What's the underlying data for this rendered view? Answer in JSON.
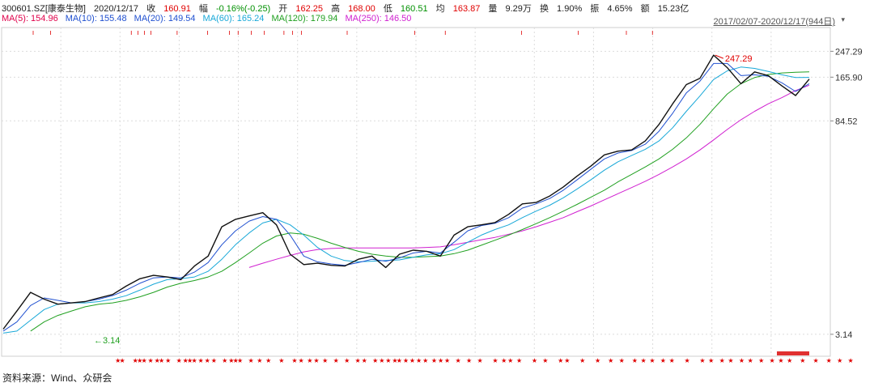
{
  "header": {
    "code": "300601.SZ[康泰生物]",
    "date": "2020/12/17",
    "close_label": "收",
    "close": "160.91",
    "change_label": "幅",
    "change": "-0.16%(-0.25)",
    "open_label": "开",
    "open": "162.25",
    "high_label": "高",
    "high": "168.00",
    "low_label": "低",
    "low": "160.51",
    "avg_label": "均",
    "avg": "163.87",
    "volume_label": "量",
    "volume": "9.29万",
    "turnover_label": "换",
    "turnover": "1.90%",
    "amplitude_label": "振",
    "amplitude": "4.65%",
    "amount_label": "额",
    "amount": "15.23亿",
    "date_range": "2017/02/07-2020/12/17(944日)"
  },
  "ma_legend": [
    {
      "label": "MA(5): 154.96",
      "color": "#e0004a"
    },
    {
      "label": "MA(10): 155.48",
      "color": "#2050d0"
    },
    {
      "label": "MA(20): 149.54",
      "color": "#2050d0"
    },
    {
      "label": "MA(60): 165.24",
      "color": "#18a8d8"
    },
    {
      "label": "MA(120): 179.94",
      "color": "#20a020"
    },
    {
      "label": "MA(250): 146.50",
      "color": "#d020d0"
    }
  ],
  "source": "资料来源：Wind、众研会",
  "chart_data": {
    "type": "line",
    "y_scale": "log",
    "y_ticks": [
      3.14,
      84.52,
      165.9,
      247.29
    ],
    "y_tick_labels": [
      "3.14",
      "84.52",
      "165.90",
      "247.29"
    ],
    "ylim": [
      2.6,
      285
    ],
    "x_range": [
      "2017/02/07",
      "2020/12/17"
    ],
    "annotations": [
      {
        "text": "247.29",
        "value": 247.29,
        "color": "#e00000"
      },
      {
        "text": "3.14",
        "value": 3.14,
        "color": "#20a020"
      }
    ],
    "series": [
      {
        "key": "price",
        "color": "#111111",
        "values": [
          3.4,
          4.5,
          6.0,
          5.4,
          5.0,
          5.1,
          5.2,
          5.5,
          5.8,
          6.6,
          7.4,
          7.8,
          7.6,
          7.3,
          9.0,
          10.5,
          16.5,
          18.5,
          19.5,
          20.5,
          17.0,
          10.8,
          9.2,
          9.4,
          9.1,
          9.0,
          10.0,
          10.5,
          8.8,
          10.8,
          11.5,
          11.3,
          10.5,
          14.5,
          16.5,
          17.0,
          17.6,
          20.0,
          23.5,
          24.0,
          26.5,
          30.5,
          36.0,
          42.0,
          50.0,
          53.0,
          54.0,
          62.0,
          80.0,
          110.0,
          148.0,
          163.0,
          233.0,
          192.0,
          150.0,
          180.0,
          170.0,
          145.0,
          125.0,
          161.0
        ]
      },
      {
        "key": "ma20",
        "color": "#2050d0",
        "values": [
          3.3,
          3.8,
          4.9,
          5.5,
          5.3,
          5.1,
          5.2,
          5.4,
          5.7,
          6.2,
          6.9,
          7.5,
          7.6,
          7.5,
          8.2,
          9.5,
          12.5,
          15.5,
          18.0,
          19.3,
          18.5,
          14.5,
          10.5,
          9.6,
          9.3,
          9.1,
          9.5,
          10.0,
          9.7,
          10.2,
          11.0,
          11.3,
          11.0,
          13.0,
          15.5,
          16.8,
          17.4,
          19.0,
          22.0,
          23.5,
          25.5,
          29.0,
          34.0,
          40.0,
          47.0,
          51.5,
          53.5,
          59.0,
          72.0,
          95.0,
          130.0,
          156.0,
          205.0,
          205.0,
          170.0,
          172.0,
          168.0,
          152.0,
          133.0,
          150.0
        ]
      },
      {
        "key": "ma60",
        "color": "#18a8d8",
        "values": [
          3.2,
          3.3,
          3.9,
          4.6,
          5.0,
          5.1,
          5.1,
          5.2,
          5.4,
          5.7,
          6.2,
          6.8,
          7.3,
          7.4,
          7.6,
          8.3,
          10.0,
          12.5,
          15.0,
          17.5,
          18.5,
          17.0,
          14.5,
          12.0,
          10.5,
          9.8,
          9.6,
          9.7,
          9.8,
          9.9,
          10.3,
          10.7,
          10.9,
          11.6,
          13.0,
          14.5,
          15.8,
          17.0,
          19.0,
          21.0,
          23.0,
          25.8,
          29.5,
          34.0,
          39.5,
          45.0,
          49.5,
          54.5,
          62.0,
          76.0,
          98.0,
          124.0,
          160.0,
          183.0,
          194.0,
          190.0,
          181.0,
          172.0,
          165.0,
          165.24
        ]
      },
      {
        "key": "ma120",
        "color": "#20a020",
        "values": [
          null,
          null,
          3.3,
          3.8,
          4.2,
          4.5,
          4.8,
          5.0,
          5.1,
          5.3,
          5.6,
          6.0,
          6.5,
          6.9,
          7.2,
          7.6,
          8.3,
          9.5,
          11.0,
          12.8,
          14.3,
          15.0,
          14.7,
          13.8,
          12.8,
          12.0,
          11.3,
          10.8,
          10.5,
          10.3,
          10.3,
          10.4,
          10.5,
          10.9,
          11.5,
          12.4,
          13.4,
          14.5,
          15.8,
          17.3,
          19.0,
          21.0,
          23.3,
          26.0,
          29.0,
          33.0,
          37.0,
          41.5,
          47.0,
          54.5,
          65.0,
          80.0,
          102.0,
          128.0,
          150.0,
          165.0,
          173.0,
          177.0,
          179.0,
          179.94
        ]
      },
      {
        "key": "ma250",
        "color": "#d020d0",
        "values": [
          null,
          null,
          null,
          null,
          null,
          null,
          null,
          null,
          null,
          null,
          null,
          null,
          null,
          null,
          null,
          null,
          null,
          null,
          8.8,
          9.4,
          10.0,
          10.6,
          11.2,
          11.6,
          11.8,
          11.9,
          11.9,
          11.9,
          11.9,
          11.9,
          11.9,
          12.0,
          12.1,
          12.5,
          13.0,
          13.5,
          14.0,
          14.7,
          15.5,
          16.5,
          17.7,
          19.0,
          20.8,
          22.7,
          25.0,
          27.5,
          30.2,
          33.3,
          37.0,
          41.5,
          47.0,
          54.0,
          63.0,
          74.0,
          86.0,
          98.0,
          110.0,
          121.0,
          135.0,
          146.5
        ]
      }
    ],
    "event_markers_top": [
      14,
      22,
      59,
      62,
      65,
      68,
      80,
      94,
      104,
      108,
      114,
      120,
      129,
      133,
      137,
      158,
      189,
      203,
      238,
      264,
      286,
      298
    ],
    "event_markers_bottom": [
      52,
      54,
      60,
      62,
      64,
      67,
      70,
      72,
      75,
      80,
      83,
      85,
      87,
      90,
      93,
      96,
      101,
      104,
      106,
      108,
      113,
      117,
      121,
      127,
      133,
      136,
      140,
      143,
      147,
      152,
      157,
      162,
      165,
      170,
      173,
      176,
      179,
      181,
      184,
      187,
      190,
      193,
      197,
      200,
      203,
      208,
      213,
      218,
      225,
      229,
      232,
      236,
      243,
      248,
      255,
      258,
      265,
      272,
      278,
      283,
      289,
      293,
      297,
      302,
      306,
      313,
      320,
      324,
      329,
      333,
      338,
      342,
      347,
      352,
      356,
      360,
      366,
      372,
      378,
      383,
      388
    ]
  }
}
